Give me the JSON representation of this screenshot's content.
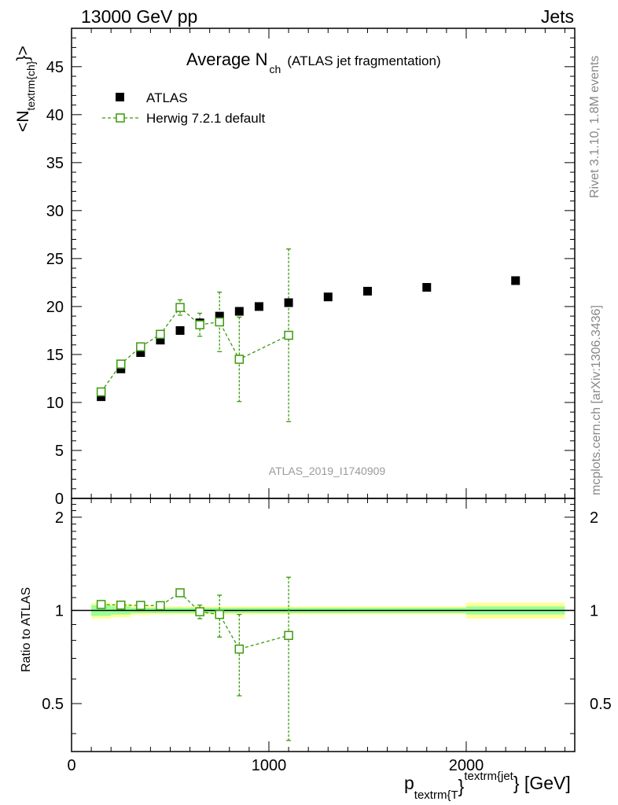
{
  "header": {
    "left": "13000 GeV pp",
    "right": "Jets"
  },
  "chart_data": {
    "type": "scatter",
    "title_main": "Average N",
    "title_sub": "ch",
    "title_note": "(ATLAS jet fragmentation)",
    "analysis_label": "ATLAS_2019_I1740909",
    "side_label_rivet": "Rivet 3.1.10,  1.8M events",
    "side_label_site": "mcplots.cern.ch [arXiv:1306.3436]",
    "ylabel_main": {
      "pre": "<N",
      "sub": "textrm{ch}",
      "post": "}>"
    },
    "ylabel_ratio": "Ratio to ATLAS",
    "xlabel": {
      "p": "p",
      "sub": "textrm{T",
      "mid": "}",
      "sup": "textrm{jet",
      "post": "} [GeV]"
    },
    "xlim": [
      0,
      2550
    ],
    "ylim_main": [
      0,
      49
    ],
    "ylim_ratio": [
      0.35,
      2.3
    ],
    "x_ticks": [
      {
        "value": 0,
        "label": "0"
      },
      {
        "value": 1000,
        "label": "1000"
      },
      {
        "value": 2000,
        "label": "2000"
      }
    ],
    "y_ticks_main": [
      {
        "value": 0,
        "label": "0"
      },
      {
        "value": 5,
        "label": "5"
      },
      {
        "value": 10,
        "label": "10"
      },
      {
        "value": 15,
        "label": "15"
      },
      {
        "value": 20,
        "label": "20"
      },
      {
        "value": 25,
        "label": "25"
      },
      {
        "value": 30,
        "label": "30"
      },
      {
        "value": 35,
        "label": "35"
      },
      {
        "value": 40,
        "label": "40"
      },
      {
        "value": 45,
        "label": "45"
      }
    ],
    "y_ticks_ratio": [
      {
        "value": 0.5,
        "label": "0.5"
      },
      {
        "value": 1,
        "label": "1"
      },
      {
        "value": 2,
        "label": "2"
      }
    ],
    "legend": [
      {
        "name": "ATLAS",
        "color": "#000000"
      },
      {
        "name": "Herwig 7.2.1 default",
        "color": "#3a9a0c"
      }
    ],
    "series": [
      {
        "name": "ATLAS",
        "color": "#000000",
        "x": [
          150,
          250,
          350,
          450,
          550,
          650,
          750,
          850,
          950,
          1100,
          1300,
          1500,
          1800,
          2250
        ],
        "y": [
          10.6,
          13.5,
          15.2,
          16.5,
          17.5,
          18.3,
          19.0,
          19.5,
          20.0,
          20.4,
          21.0,
          21.6,
          22.0,
          22.7
        ]
      },
      {
        "name": "Herwig 7.2.1 default",
        "color": "#3a9a0c",
        "x": [
          150,
          250,
          350,
          450,
          550,
          650,
          750,
          850,
          1100
        ],
        "y": [
          11.1,
          14.0,
          15.8,
          17.1,
          19.9,
          18.1,
          18.4,
          14.5,
          17.0
        ],
        "yerr": [
          0.3,
          0.3,
          0.3,
          0.4,
          0.8,
          1.2,
          3.1,
          4.4,
          9.0
        ],
        "ratio": [
          1.045,
          1.04,
          1.038,
          1.036,
          1.14,
          0.99,
          0.97,
          0.75,
          0.83
        ],
        "ratio_err": [
          0.01,
          0.01,
          0.01,
          0.012,
          0.03,
          0.05,
          0.15,
          0.22,
          0.45
        ]
      }
    ],
    "ratio_band": {
      "x_edges": [
        100,
        200,
        300,
        400,
        500,
        600,
        700,
        800,
        900,
        1000,
        1200,
        1400,
        1600,
        2000,
        2500
      ],
      "inner": [
        0.04,
        0.03,
        0.02,
        0.02,
        0.02,
        0.02,
        0.02,
        0.02,
        0.02,
        0.02,
        0.02,
        0.02,
        0.02,
        0.03
      ],
      "outer": [
        0.06,
        0.05,
        0.035,
        0.03,
        0.03,
        0.03,
        0.03,
        0.03,
        0.03,
        0.03,
        0.03,
        0.03,
        0.03,
        0.06
      ]
    }
  }
}
